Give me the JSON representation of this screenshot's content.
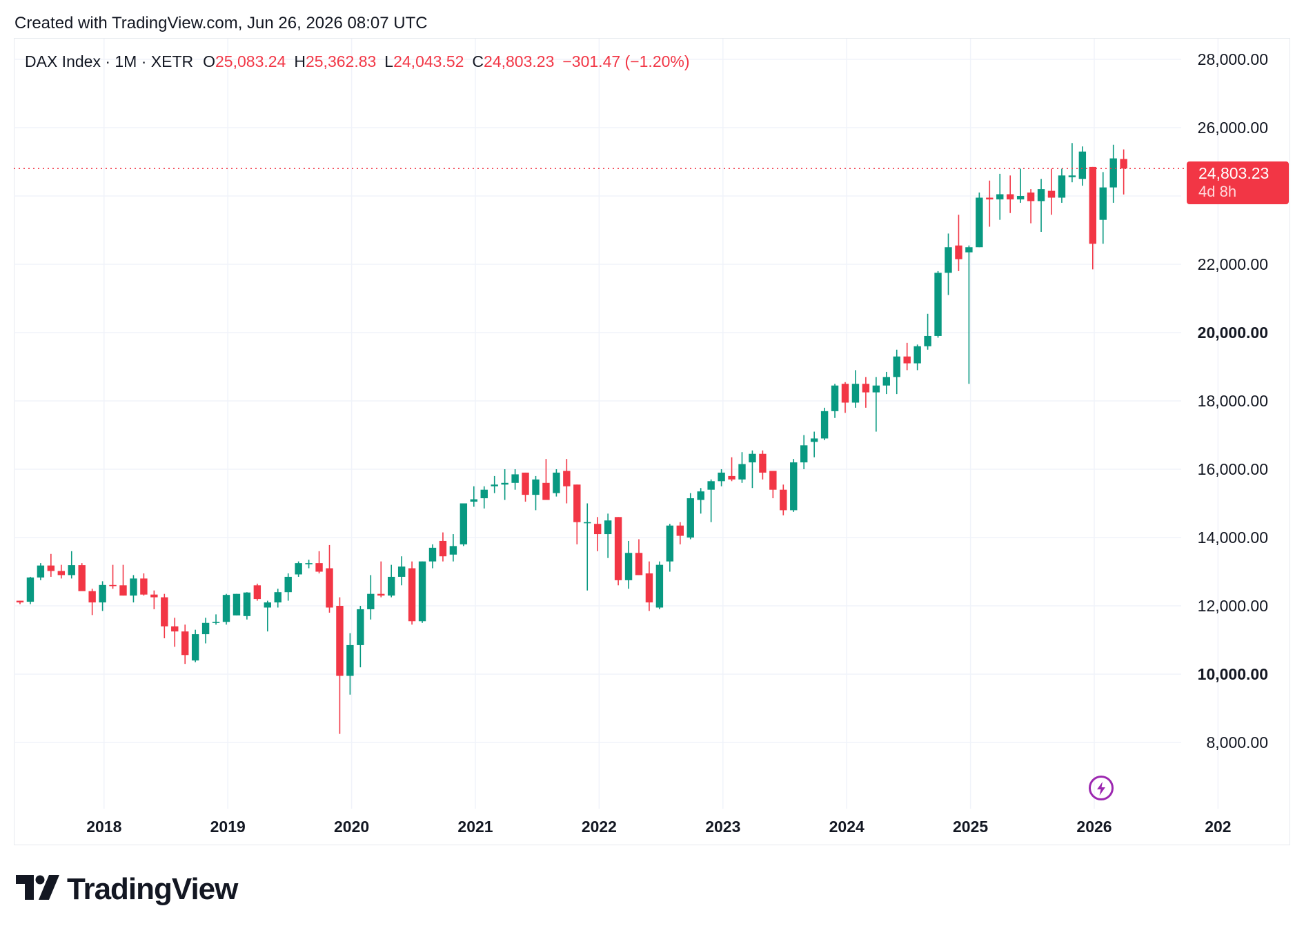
{
  "header": {
    "created_text": "Created with TradingView.com, Jun 26, 2026 08:07 UTC"
  },
  "legend": {
    "symbol": "DAX Index · 1M · XETR",
    "o_label": "O",
    "o_value": "25,083.24",
    "h_label": "H",
    "h_value": "25,362.83",
    "l_label": "L",
    "l_value": "24,043.52",
    "c_label": "C",
    "c_value": "24,803.23",
    "change": "−301.47 (−1.20%)"
  },
  "price_badge": {
    "price": "24,803.23",
    "time_left": "4d 8h"
  },
  "footer": {
    "brand": "TradingView"
  },
  "colors": {
    "up": "#089981",
    "down": "#f23645",
    "grid": "#f0f3fa",
    "text": "#131722",
    "accent": "#9c27b0"
  },
  "icons": {
    "flash": "lightning-bolt-icon",
    "logo": "tradingview-logo-icon"
  },
  "chart_data": {
    "type": "candlestick",
    "interval": "1M",
    "ylim": [
      6500,
      28500
    ],
    "y_ticks": [
      {
        "value": 8000,
        "label": "8,000.00",
        "bold": false
      },
      {
        "value": 10000,
        "label": "10,000.00",
        "bold": true
      },
      {
        "value": 12000,
        "label": "12,000.00",
        "bold": false
      },
      {
        "value": 14000,
        "label": "14,000.00",
        "bold": false
      },
      {
        "value": 16000,
        "label": "16,000.00",
        "bold": false
      },
      {
        "value": 18000,
        "label": "18,000.00",
        "bold": false
      },
      {
        "value": 20000,
        "label": "20,000.00",
        "bold": true
      },
      {
        "value": 22000,
        "label": "22,000.00",
        "bold": false
      },
      {
        "value": 24000,
        "label": "24,000.00",
        "bold": false
      },
      {
        "value": 26000,
        "label": "26,000.00",
        "bold": false
      },
      {
        "value": 28000,
        "label": "28,000.00",
        "bold": false
      }
    ],
    "x_ticks": [
      {
        "index": 4,
        "label": "2018"
      },
      {
        "index": 16,
        "label": "2019"
      },
      {
        "index": 28,
        "label": "2020"
      },
      {
        "index": 40,
        "label": "2021"
      },
      {
        "index": 52,
        "label": "2022"
      },
      {
        "index": 64,
        "label": "2023"
      },
      {
        "index": 76,
        "label": "2024"
      },
      {
        "index": 88,
        "label": "2025"
      },
      {
        "index": 100,
        "label": "2026"
      },
      {
        "index": 112,
        "label": "202"
      }
    ],
    "last_price": 24803.23,
    "candles": [
      {
        "o": 12150,
        "h": 12150,
        "l": 12050,
        "c": 12100
      },
      {
        "o": 12120,
        "h": 12850,
        "l": 12050,
        "c": 12830
      },
      {
        "o": 12830,
        "h": 13250,
        "l": 12750,
        "c": 13180
      },
      {
        "o": 13180,
        "h": 13520,
        "l": 12850,
        "c": 13020
      },
      {
        "o": 13020,
        "h": 13200,
        "l": 12800,
        "c": 12900
      },
      {
        "o": 12900,
        "h": 13600,
        "l": 12800,
        "c": 13190
      },
      {
        "o": 13190,
        "h": 13250,
        "l": 12450,
        "c": 12430
      },
      {
        "o": 12430,
        "h": 12500,
        "l": 11730,
        "c": 12100
      },
      {
        "o": 12100,
        "h": 12720,
        "l": 11850,
        "c": 12610
      },
      {
        "o": 12610,
        "h": 13200,
        "l": 12500,
        "c": 12600
      },
      {
        "o": 12600,
        "h": 13200,
        "l": 12300,
        "c": 12300
      },
      {
        "o": 12300,
        "h": 12900,
        "l": 12100,
        "c": 12800
      },
      {
        "o": 12800,
        "h": 12950,
        "l": 12300,
        "c": 12330
      },
      {
        "o": 12330,
        "h": 12450,
        "l": 11900,
        "c": 12250
      },
      {
        "o": 12250,
        "h": 12350,
        "l": 11050,
        "c": 11400
      },
      {
        "o": 11400,
        "h": 11650,
        "l": 10800,
        "c": 11250
      },
      {
        "o": 11250,
        "h": 11450,
        "l": 10300,
        "c": 10560
      },
      {
        "o": 10400,
        "h": 11300,
        "l": 10350,
        "c": 11170
      },
      {
        "o": 11170,
        "h": 11650,
        "l": 10900,
        "c": 11500
      },
      {
        "o": 11500,
        "h": 11750,
        "l": 11450,
        "c": 11530
      },
      {
        "o": 11530,
        "h": 12350,
        "l": 11450,
        "c": 12320
      },
      {
        "o": 11720,
        "h": 12350,
        "l": 11720,
        "c": 12350
      },
      {
        "o": 11700,
        "h": 12400,
        "l": 11600,
        "c": 12390
      },
      {
        "o": 12600,
        "h": 12650,
        "l": 12150,
        "c": 12200
      },
      {
        "o": 11950,
        "h": 12150,
        "l": 11250,
        "c": 12100
      },
      {
        "o": 12100,
        "h": 12500,
        "l": 11950,
        "c": 12400
      },
      {
        "o": 12400,
        "h": 12950,
        "l": 12150,
        "c": 12850
      },
      {
        "o": 12920,
        "h": 13300,
        "l": 12850,
        "c": 13250
      },
      {
        "o": 13250,
        "h": 13350,
        "l": 13100,
        "c": 13250
      },
      {
        "o": 13250,
        "h": 13600,
        "l": 12950,
        "c": 13000
      },
      {
        "o": 13100,
        "h": 13780,
        "l": 11800,
        "c": 11950
      },
      {
        "o": 12000,
        "h": 12250,
        "l": 8250,
        "c": 9950
      },
      {
        "o": 9950,
        "h": 11200,
        "l": 9400,
        "c": 10850
      },
      {
        "o": 10850,
        "h": 12000,
        "l": 10200,
        "c": 11900
      },
      {
        "o": 11900,
        "h": 12900,
        "l": 11600,
        "c": 12350
      },
      {
        "o": 12350,
        "h": 13300,
        "l": 12250,
        "c": 12300
      },
      {
        "o": 12300,
        "h": 13200,
        "l": 12250,
        "c": 12850
      },
      {
        "o": 12850,
        "h": 13450,
        "l": 12600,
        "c": 13150
      },
      {
        "o": 13100,
        "h": 13300,
        "l": 11450,
        "c": 11550
      },
      {
        "o": 11550,
        "h": 13300,
        "l": 11500,
        "c": 13300
      },
      {
        "o": 13300,
        "h": 13800,
        "l": 13100,
        "c": 13700
      },
      {
        "o": 13900,
        "h": 14150,
        "l": 13300,
        "c": 13450
      },
      {
        "o": 13500,
        "h": 14100,
        "l": 13300,
        "c": 13750
      },
      {
        "o": 13800,
        "h": 15000,
        "l": 13750,
        "c": 15000
      },
      {
        "o": 15050,
        "h": 15500,
        "l": 14900,
        "c": 15120
      },
      {
        "o": 15150,
        "h": 15500,
        "l": 14850,
        "c": 15400
      },
      {
        "o": 15500,
        "h": 15800,
        "l": 15300,
        "c": 15550
      },
      {
        "o": 15550,
        "h": 16000,
        "l": 15100,
        "c": 15600
      },
      {
        "o": 15600,
        "h": 16000,
        "l": 15400,
        "c": 15850
      },
      {
        "o": 15900,
        "h": 15900,
        "l": 15050,
        "c": 15250
      },
      {
        "o": 15250,
        "h": 15800,
        "l": 14800,
        "c": 15700
      },
      {
        "o": 15600,
        "h": 16300,
        "l": 15300,
        "c": 15100
      },
      {
        "o": 15300,
        "h": 16000,
        "l": 15200,
        "c": 15900
      },
      {
        "o": 15950,
        "h": 16300,
        "l": 15000,
        "c": 15500
      },
      {
        "o": 15550,
        "h": 15550,
        "l": 13800,
        "c": 14450
      },
      {
        "o": 14450,
        "h": 15000,
        "l": 12450,
        "c": 14450
      },
      {
        "o": 14400,
        "h": 14600,
        "l": 13600,
        "c": 14100
      },
      {
        "o": 14100,
        "h": 14700,
        "l": 13400,
        "c": 14500
      },
      {
        "o": 14600,
        "h": 14600,
        "l": 12600,
        "c": 12750
      },
      {
        "o": 12750,
        "h": 13900,
        "l": 12500,
        "c": 13550
      },
      {
        "o": 13550,
        "h": 13950,
        "l": 12900,
        "c": 12900
      },
      {
        "o": 12950,
        "h": 13300,
        "l": 11850,
        "c": 12100
      },
      {
        "o": 11950,
        "h": 13300,
        "l": 11900,
        "c": 13200
      },
      {
        "o": 13300,
        "h": 14400,
        "l": 13000,
        "c": 14350
      },
      {
        "o": 14350,
        "h": 14450,
        "l": 13800,
        "c": 14050
      },
      {
        "o": 14000,
        "h": 15300,
        "l": 13950,
        "c": 15150
      },
      {
        "o": 15100,
        "h": 15450,
        "l": 14700,
        "c": 15350
      },
      {
        "o": 15400,
        "h": 15700,
        "l": 14450,
        "c": 15650
      },
      {
        "o": 15650,
        "h": 16000,
        "l": 15500,
        "c": 15900
      },
      {
        "o": 15800,
        "h": 16350,
        "l": 15650,
        "c": 15700
      },
      {
        "o": 15700,
        "h": 16500,
        "l": 15600,
        "c": 16150
      },
      {
        "o": 16200,
        "h": 16550,
        "l": 15450,
        "c": 16450
      },
      {
        "o": 16450,
        "h": 16550,
        "l": 15700,
        "c": 15900
      },
      {
        "o": 15950,
        "h": 15950,
        "l": 15150,
        "c": 15400
      },
      {
        "o": 15400,
        "h": 15550,
        "l": 14650,
        "c": 14800
      },
      {
        "o": 14800,
        "h": 16300,
        "l": 14750,
        "c": 16200
      },
      {
        "o": 16200,
        "h": 17000,
        "l": 16000,
        "c": 16700
      },
      {
        "o": 16800,
        "h": 17100,
        "l": 16350,
        "c": 16900
      },
      {
        "o": 16900,
        "h": 17800,
        "l": 16850,
        "c": 17700
      },
      {
        "o": 17700,
        "h": 18500,
        "l": 17500,
        "c": 18450
      },
      {
        "o": 18500,
        "h": 18550,
        "l": 17650,
        "c": 17950
      },
      {
        "o": 17950,
        "h": 18900,
        "l": 17800,
        "c": 18500
      },
      {
        "o": 18500,
        "h": 18700,
        "l": 17800,
        "c": 18250
      },
      {
        "o": 18250,
        "h": 18700,
        "l": 17100,
        "c": 18450
      },
      {
        "o": 18450,
        "h": 18850,
        "l": 18200,
        "c": 18700
      },
      {
        "o": 18700,
        "h": 19500,
        "l": 18200,
        "c": 19300
      },
      {
        "o": 19300,
        "h": 19700,
        "l": 18900,
        "c": 19100
      },
      {
        "o": 19100,
        "h": 19650,
        "l": 18900,
        "c": 19600
      },
      {
        "o": 19600,
        "h": 20550,
        "l": 19500,
        "c": 19900
      },
      {
        "o": 19900,
        "h": 21800,
        "l": 19850,
        "c": 21750
      },
      {
        "o": 21750,
        "h": 22900,
        "l": 21100,
        "c": 22500
      },
      {
        "o": 22550,
        "h": 23450,
        "l": 21800,
        "c": 22150
      },
      {
        "o": 22350,
        "h": 22550,
        "l": 18500,
        "c": 22500
      },
      {
        "o": 22500,
        "h": 24100,
        "l": 22500,
        "c": 23950
      },
      {
        "o": 23950,
        "h": 24450,
        "l": 23100,
        "c": 23900
      },
      {
        "o": 23900,
        "h": 24650,
        "l": 23300,
        "c": 24050
      },
      {
        "o": 24050,
        "h": 24600,
        "l": 23500,
        "c": 23900
      },
      {
        "o": 23900,
        "h": 24800,
        "l": 23800,
        "c": 24000
      },
      {
        "o": 24100,
        "h": 24200,
        "l": 23200,
        "c": 23850
      },
      {
        "o": 23850,
        "h": 24500,
        "l": 22950,
        "c": 24200
      },
      {
        "o": 24150,
        "h": 24800,
        "l": 23450,
        "c": 23950
      },
      {
        "o": 23950,
        "h": 24800,
        "l": 23800,
        "c": 24600
      },
      {
        "o": 24550,
        "h": 25550,
        "l": 24400,
        "c": 24600
      },
      {
        "o": 24500,
        "h": 25450,
        "l": 24300,
        "c": 25300
      },
      {
        "o": 24850,
        "h": 24850,
        "l": 21850,
        "c": 22600
      },
      {
        "o": 23300,
        "h": 24700,
        "l": 22600,
        "c": 24250
      },
      {
        "o": 24250,
        "h": 25500,
        "l": 23800,
        "c": 25100
      },
      {
        "o": 25083.24,
        "h": 25362.83,
        "l": 24043.52,
        "c": 24803.23
      }
    ]
  }
}
